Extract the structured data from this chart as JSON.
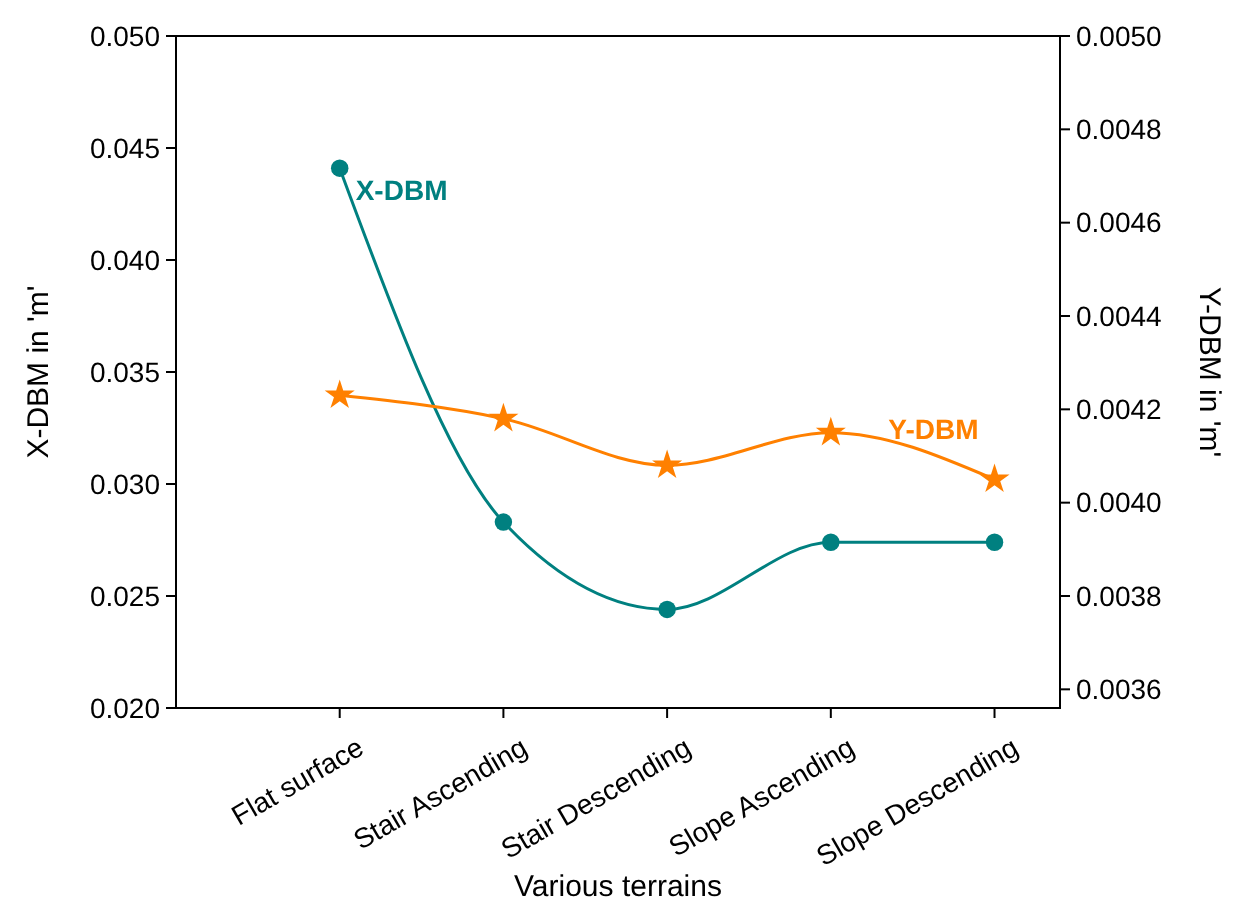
{
  "chart_data": {
    "type": "line",
    "xlabel": "Various terrains",
    "ylabel": "X-DBM in 'm'",
    "y2label": "Y-DBM in 'm'",
    "categories": [
      "Flat surface",
      "Stair Ascending",
      "Stair Descending",
      "Slope Ascending",
      "Slope Descending"
    ],
    "ylim": [
      0.02,
      0.05
    ],
    "yticks": [
      {
        "value": 0.02,
        "label": "0.020"
      },
      {
        "value": 0.025,
        "label": "0.025"
      },
      {
        "value": 0.03,
        "label": "0.030"
      },
      {
        "value": 0.035,
        "label": "0.035"
      },
      {
        "value": 0.04,
        "label": "0.040"
      },
      {
        "value": 0.045,
        "label": "0.045"
      },
      {
        "value": 0.05,
        "label": "0.050"
      }
    ],
    "y2lim": [
      0.00356,
      0.005
    ],
    "y2ticks": [
      0.0036,
      0.0038,
      {
        "value": 0.004,
        "label": "0.0040"
      },
      0.0042,
      0.0044,
      0.0046,
      0.0048,
      {
        "value": 0.005,
        "label": "0.0050"
      }
    ],
    "series": [
      {
        "name": "X-DBM",
        "color": "#008080",
        "marker": "circle",
        "values": [
          0.0441,
          0.0283,
          0.0244,
          0.0274,
          0.0274
        ]
      },
      {
        "name": "Y-DBM",
        "color": "#ff8000",
        "marker": "star",
        "axis": "y2",
        "values": [
          0.00423,
          0.00418,
          0.00408,
          0.00415,
          0.00405
        ]
      }
    ]
  }
}
